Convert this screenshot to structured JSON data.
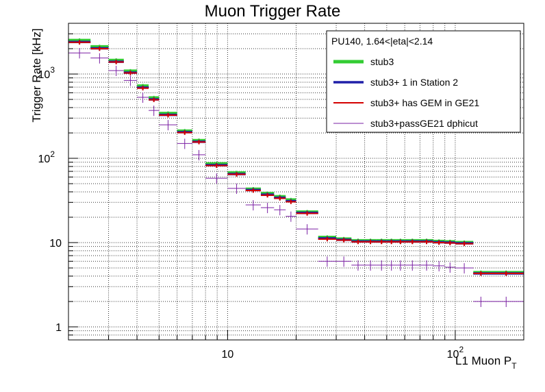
{
  "chart_data": {
    "type": "histogram",
    "title": "Muon Trigger Rate",
    "ylabel": "Trigger Rate [kHz]",
    "xlabel_main": "L1 Muon P",
    "xlabel_sub": "T",
    "xscale": "log",
    "yscale": "log",
    "xlim": [
      2,
      200
    ],
    "ylim": [
      0.7,
      4000
    ],
    "grid": true,
    "x_tick_labels": [
      {
        "value": 10,
        "base": "10",
        "exp": ""
      },
      {
        "value": 100,
        "base": "10",
        "exp": "2"
      }
    ],
    "y_tick_labels": [
      {
        "value": 1,
        "base": "1",
        "exp": ""
      },
      {
        "value": 10,
        "base": "10",
        "exp": ""
      },
      {
        "value": 100,
        "base": "10",
        "exp": "2"
      },
      {
        "value": 1000,
        "base": "10",
        "exp": "3"
      }
    ],
    "legend": {
      "header": "PU140, 1.64<|eta|<2.14",
      "placement": "top-right"
    },
    "bin_edges": [
      2,
      2.5,
      3,
      3.5,
      4,
      4.5,
      5,
      6,
      7,
      8,
      10,
      12,
      14,
      16,
      18,
      20,
      25,
      30,
      35,
      40,
      45,
      50,
      55,
      60,
      70,
      80,
      90,
      100,
      120,
      140,
      200
    ],
    "series": [
      {
        "name": "stub3",
        "color": "#33cc33",
        "values": [
          2500,
          2100,
          1450,
          1080,
          720,
          520,
          340,
          210,
          162,
          86,
          67,
          43,
          38,
          35,
          32,
          23,
          11.5,
          11.0,
          10.5,
          10.5,
          10.5,
          10.5,
          10.5,
          10.5,
          10.5,
          10.3,
          10.2,
          10.0,
          4.4,
          4.4
        ]
      },
      {
        "name": "stub3+ 1 in Station 2",
        "color": "#1f1fa8",
        "values": [
          2400,
          2020,
          1400,
          1040,
          690,
          500,
          328,
          204,
          157,
          83,
          65,
          42,
          37,
          34,
          31,
          22.5,
          11.2,
          10.8,
          10.3,
          10.3,
          10.3,
          10.3,
          10.3,
          10.3,
          10.3,
          10.1,
          10.0,
          9.8,
          4.3,
          4.3
        ]
      },
      {
        "name": "stub3+ has GEM in GE21",
        "color": "#d40000",
        "values": [
          2380,
          2000,
          1390,
          1030,
          680,
          495,
          325,
          202,
          156,
          82,
          64.5,
          41.5,
          36.5,
          33.5,
          30.5,
          22.2,
          11.0,
          10.7,
          10.2,
          10.2,
          10.2,
          10.2,
          10.2,
          10.2,
          10.2,
          10.0,
          9.9,
          9.7,
          4.3,
          4.3
        ]
      },
      {
        "name": "stub3+passGE21 dphicut",
        "color": "#7a1fa3",
        "values": [
          1780,
          1550,
          1100,
          840,
          530,
          370,
          250,
          150,
          110,
          58,
          44,
          28,
          26,
          24.5,
          20.5,
          14.5,
          6.0,
          6.0,
          5.4,
          5.4,
          5.4,
          5.4,
          5.4,
          5.4,
          5.4,
          5.3,
          5.1,
          5.0,
          2.0,
          2.0
        ]
      }
    ]
  }
}
